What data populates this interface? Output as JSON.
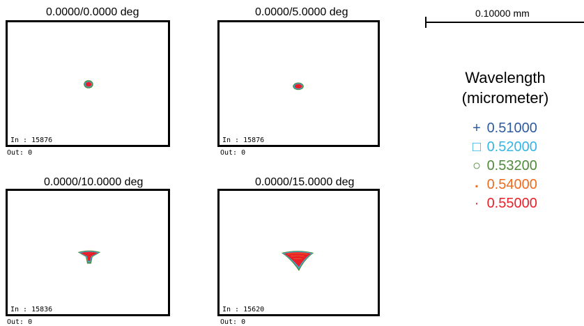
{
  "panels": [
    {
      "title": "0.0000/0.0000 deg",
      "in_label": "In : 15876",
      "out_label": "Out: 0"
    },
    {
      "title": "0.0000/5.0000 deg",
      "in_label": "In : 15876",
      "out_label": "Out: 0"
    },
    {
      "title": "0.0000/10.0000 deg",
      "in_label": "In : 15836",
      "out_label": "Out: 0"
    },
    {
      "title": "0.0000/15.0000 deg",
      "in_label": "In : 15620",
      "out_label": "Out: 0"
    }
  ],
  "scale_bar": {
    "label": "0.10000 mm"
  },
  "legend": {
    "title_line1": "Wavelength",
    "title_line2": "(micrometer)",
    "items": [
      {
        "symbol": "+",
        "value": "0.51000",
        "color": "#2e5a9e"
      },
      {
        "symbol": "□",
        "value": "0.52000",
        "color": "#35b4e6"
      },
      {
        "symbol": "○",
        "value": "0.53200",
        "color": "#4f8a3a"
      },
      {
        "symbol": "▪",
        "value": "0.54000",
        "color": "#ef6b1f"
      },
      {
        "symbol": "·",
        "value": "0.55000",
        "color": "#e8202a"
      }
    ]
  }
}
